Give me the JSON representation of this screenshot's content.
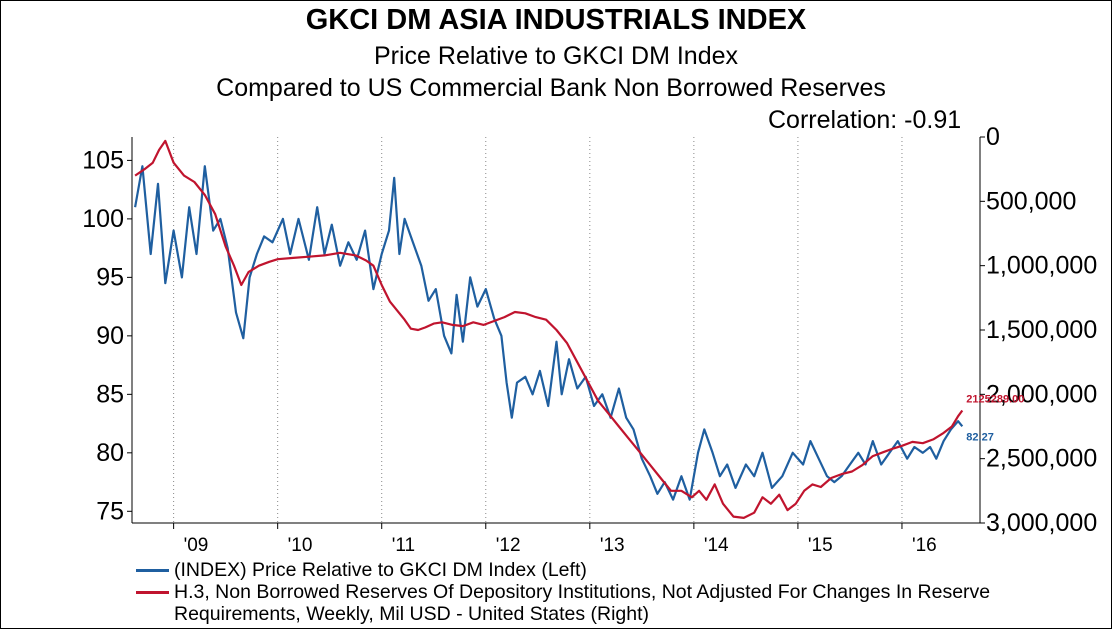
{
  "chart_data": {
    "type": "line",
    "title": "GKCI DM ASIA INDUSTRIALS INDEX",
    "subtitle": "Price Relative to GKCI DM Index",
    "subtitle2": "Compared to US Commercial Bank Non Borrowed Reserves",
    "annotation": "Correlation: -0.91",
    "x_ticks": [
      "'09",
      "'10",
      "'11",
      "'12",
      "'13",
      "'14",
      "'15",
      "'16"
    ],
    "x_range": [
      2008.6,
      2016.75
    ],
    "left_axis": {
      "ticks": [
        "105",
        "100",
        "95",
        "90",
        "85",
        "80",
        "75"
      ],
      "range": [
        74,
        107
      ]
    },
    "right_axis": {
      "ticks": [
        "0",
        "500,000",
        "1,000,000",
        "1,500,000",
        "2,000,000",
        "2,500,000",
        "3,000,000"
      ],
      "range": [
        0,
        3000000
      ],
      "inverted": true
    },
    "grid": "vertical-dotted",
    "legend_position": "bottom",
    "series": [
      {
        "name": "(INDEX) Price Relative to GKCI DM Index  (Left)",
        "axis": "left",
        "color": "#1f5fa0",
        "last_label": "82.27",
        "points": [
          [
            2008.63,
            101
          ],
          [
            2008.7,
            104.5
          ],
          [
            2008.78,
            97
          ],
          [
            2008.85,
            103
          ],
          [
            2008.92,
            94.5
          ],
          [
            2009.0,
            99
          ],
          [
            2009.08,
            95
          ],
          [
            2009.15,
            101
          ],
          [
            2009.22,
            97
          ],
          [
            2009.3,
            104.5
          ],
          [
            2009.38,
            99
          ],
          [
            2009.45,
            100
          ],
          [
            2009.52,
            97.5
          ],
          [
            2009.6,
            92
          ],
          [
            2009.67,
            89.8
          ],
          [
            2009.73,
            95
          ],
          [
            2009.8,
            97
          ],
          [
            2009.87,
            98.5
          ],
          [
            2009.95,
            98
          ],
          [
            2010.05,
            100
          ],
          [
            2010.12,
            97
          ],
          [
            2010.2,
            100
          ],
          [
            2010.3,
            96.5
          ],
          [
            2010.38,
            101
          ],
          [
            2010.45,
            97
          ],
          [
            2010.52,
            99.5
          ],
          [
            2010.6,
            96
          ],
          [
            2010.68,
            98
          ],
          [
            2010.76,
            96.5
          ],
          [
            2010.84,
            99
          ],
          [
            2010.92,
            94
          ],
          [
            2011.0,
            97
          ],
          [
            2011.07,
            99
          ],
          [
            2011.12,
            103.5
          ],
          [
            2011.17,
            97
          ],
          [
            2011.22,
            100
          ],
          [
            2011.3,
            98
          ],
          [
            2011.38,
            96
          ],
          [
            2011.45,
            93
          ],
          [
            2011.52,
            94
          ],
          [
            2011.6,
            90
          ],
          [
            2011.67,
            88.5
          ],
          [
            2011.72,
            93.5
          ],
          [
            2011.78,
            89.5
          ],
          [
            2011.85,
            95
          ],
          [
            2011.92,
            92.5
          ],
          [
            2012.0,
            94
          ],
          [
            2012.08,
            91.5
          ],
          [
            2012.15,
            90
          ],
          [
            2012.2,
            86
          ],
          [
            2012.25,
            83
          ],
          [
            2012.3,
            86
          ],
          [
            2012.38,
            86.5
          ],
          [
            2012.45,
            85
          ],
          [
            2012.52,
            87
          ],
          [
            2012.6,
            84
          ],
          [
            2012.68,
            89.5
          ],
          [
            2012.73,
            85
          ],
          [
            2012.8,
            88
          ],
          [
            2012.88,
            85.5
          ],
          [
            2012.96,
            86.5
          ],
          [
            2013.04,
            84
          ],
          [
            2013.12,
            85
          ],
          [
            2013.2,
            83
          ],
          [
            2013.28,
            85.5
          ],
          [
            2013.35,
            83
          ],
          [
            2013.42,
            82
          ],
          [
            2013.5,
            79.5
          ],
          [
            2013.58,
            78
          ],
          [
            2013.65,
            76.5
          ],
          [
            2013.72,
            77.5
          ],
          [
            2013.8,
            76
          ],
          [
            2013.88,
            78
          ],
          [
            2013.96,
            76
          ],
          [
            2014.04,
            80
          ],
          [
            2014.1,
            82
          ],
          [
            2014.18,
            80
          ],
          [
            2014.25,
            78
          ],
          [
            2014.32,
            79
          ],
          [
            2014.4,
            77
          ],
          [
            2014.5,
            79
          ],
          [
            2014.58,
            78
          ],
          [
            2014.66,
            80
          ],
          [
            2014.75,
            77
          ],
          [
            2014.85,
            78
          ],
          [
            2014.95,
            80
          ],
          [
            2015.05,
            79
          ],
          [
            2015.12,
            81
          ],
          [
            2015.2,
            79.5
          ],
          [
            2015.28,
            78
          ],
          [
            2015.35,
            77.5
          ],
          [
            2015.42,
            78
          ],
          [
            2015.5,
            79
          ],
          [
            2015.58,
            80
          ],
          [
            2015.65,
            79
          ],
          [
            2015.72,
            81
          ],
          [
            2015.8,
            79
          ],
          [
            2015.88,
            80
          ],
          [
            2015.96,
            81
          ],
          [
            2016.05,
            79.5
          ],
          [
            2016.12,
            80.5
          ],
          [
            2016.2,
            80
          ],
          [
            2016.27,
            80.5
          ],
          [
            2016.33,
            79.5
          ],
          [
            2016.4,
            81
          ],
          [
            2016.47,
            82
          ],
          [
            2016.54,
            82.7
          ],
          [
            2016.58,
            82.27
          ]
        ]
      },
      {
        "name": "H.3, Non Borrowed Reserves Of Depository Institutions, Not Adjusted For Changes In Reserve Requirements, Weekly, Mil USD - United States  (Right)",
        "axis": "right",
        "color": "#c0142e",
        "last_label": "2125289.00",
        "points": [
          [
            2008.63,
            300000
          ],
          [
            2008.72,
            250000
          ],
          [
            2008.8,
            200000
          ],
          [
            2008.86,
            100000
          ],
          [
            2008.92,
            30000
          ],
          [
            2009.0,
            200000
          ],
          [
            2009.1,
            300000
          ],
          [
            2009.2,
            350000
          ],
          [
            2009.3,
            450000
          ],
          [
            2009.4,
            600000
          ],
          [
            2009.5,
            850000
          ],
          [
            2009.58,
            1000000
          ],
          [
            2009.65,
            1150000
          ],
          [
            2009.72,
            1050000
          ],
          [
            2009.82,
            1000000
          ],
          [
            2009.92,
            970000
          ],
          [
            2010.0,
            950000
          ],
          [
            2010.15,
            940000
          ],
          [
            2010.3,
            930000
          ],
          [
            2010.45,
            920000
          ],
          [
            2010.6,
            900000
          ],
          [
            2010.75,
            920000
          ],
          [
            2010.85,
            960000
          ],
          [
            2010.92,
            1000000
          ],
          [
            2011.0,
            1150000
          ],
          [
            2011.08,
            1280000
          ],
          [
            2011.15,
            1350000
          ],
          [
            2011.22,
            1420000
          ],
          [
            2011.28,
            1490000
          ],
          [
            2011.35,
            1500000
          ],
          [
            2011.42,
            1480000
          ],
          [
            2011.5,
            1450000
          ],
          [
            2011.58,
            1440000
          ],
          [
            2011.68,
            1460000
          ],
          [
            2011.78,
            1470000
          ],
          [
            2011.88,
            1440000
          ],
          [
            2011.98,
            1460000
          ],
          [
            2012.08,
            1430000
          ],
          [
            2012.18,
            1400000
          ],
          [
            2012.28,
            1360000
          ],
          [
            2012.38,
            1370000
          ],
          [
            2012.48,
            1400000
          ],
          [
            2012.58,
            1420000
          ],
          [
            2012.68,
            1500000
          ],
          [
            2012.78,
            1600000
          ],
          [
            2012.88,
            1750000
          ],
          [
            2012.98,
            1900000
          ],
          [
            2013.08,
            2050000
          ],
          [
            2013.18,
            2150000
          ],
          [
            2013.28,
            2250000
          ],
          [
            2013.38,
            2350000
          ],
          [
            2013.48,
            2450000
          ],
          [
            2013.58,
            2550000
          ],
          [
            2013.68,
            2650000
          ],
          [
            2013.78,
            2750000
          ],
          [
            2013.88,
            2750000
          ],
          [
            2013.98,
            2800000
          ],
          [
            2014.05,
            2750000
          ],
          [
            2014.12,
            2820000
          ],
          [
            2014.2,
            2700000
          ],
          [
            2014.28,
            2850000
          ],
          [
            2014.38,
            2950000
          ],
          [
            2014.48,
            2960000
          ],
          [
            2014.58,
            2920000
          ],
          [
            2014.66,
            2800000
          ],
          [
            2014.74,
            2850000
          ],
          [
            2014.82,
            2780000
          ],
          [
            2014.9,
            2900000
          ],
          [
            2014.98,
            2850000
          ],
          [
            2015.06,
            2750000
          ],
          [
            2015.14,
            2700000
          ],
          [
            2015.22,
            2720000
          ],
          [
            2015.32,
            2650000
          ],
          [
            2015.42,
            2620000
          ],
          [
            2015.52,
            2600000
          ],
          [
            2015.62,
            2550000
          ],
          [
            2015.72,
            2480000
          ],
          [
            2015.82,
            2450000
          ],
          [
            2015.92,
            2420000
          ],
          [
            2016.0,
            2400000
          ],
          [
            2016.1,
            2370000
          ],
          [
            2016.2,
            2380000
          ],
          [
            2016.3,
            2350000
          ],
          [
            2016.4,
            2300000
          ],
          [
            2016.48,
            2250000
          ],
          [
            2016.54,
            2170000
          ],
          [
            2016.58,
            2125289
          ]
        ]
      }
    ]
  }
}
